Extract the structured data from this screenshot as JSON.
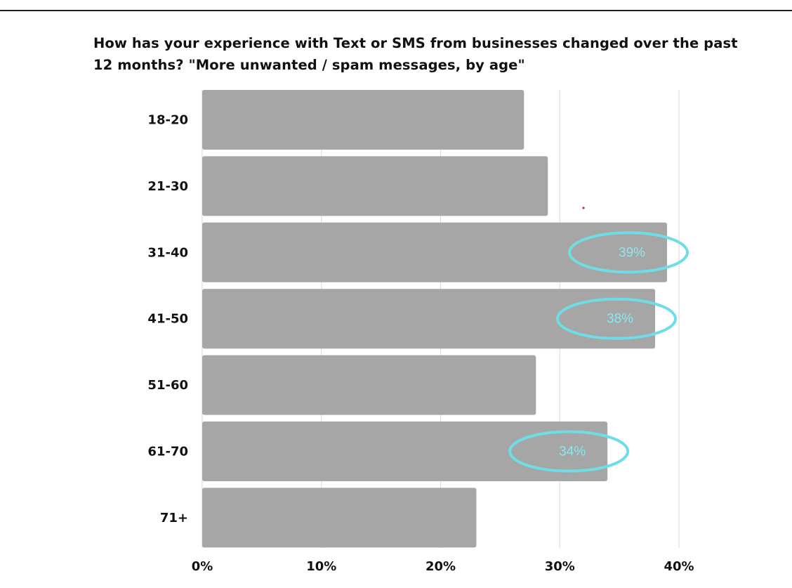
{
  "chart_title_lines": [
    "How has your experience with Text or SMS from businesses changed over the past",
    "12 months? \"More unwanted / spam messages, by age\""
  ],
  "chart_data": {
    "type": "bar",
    "orientation": "horizontal",
    "title": "How has your experience with Text or SMS from businesses changed over the past 12 months? \"More unwanted / spam messages, by age\"",
    "categories": [
      "18-20",
      "21-30",
      "31-40",
      "41-50",
      "51-60",
      "61-70",
      "71+"
    ],
    "values": [
      27,
      29,
      39,
      38,
      28,
      34,
      23
    ],
    "unit": "%",
    "xlim": [
      0,
      40
    ],
    "x_ticks": [
      "0%",
      "10%",
      "20%",
      "30%",
      "40%"
    ],
    "grid": "vertical",
    "bar_color": "#a6a6a6",
    "highlights": [
      {
        "category": "31-40",
        "label": "39%"
      },
      {
        "category": "41-50",
        "label": "38%"
      },
      {
        "category": "61-70",
        "label": "34%"
      }
    ],
    "highlight_color": "#6fdde6"
  },
  "colors": {
    "rule": "#1f1f1f",
    "grid": "#d9d9d9",
    "text": "#111111",
    "dot": "#c0392b"
  }
}
